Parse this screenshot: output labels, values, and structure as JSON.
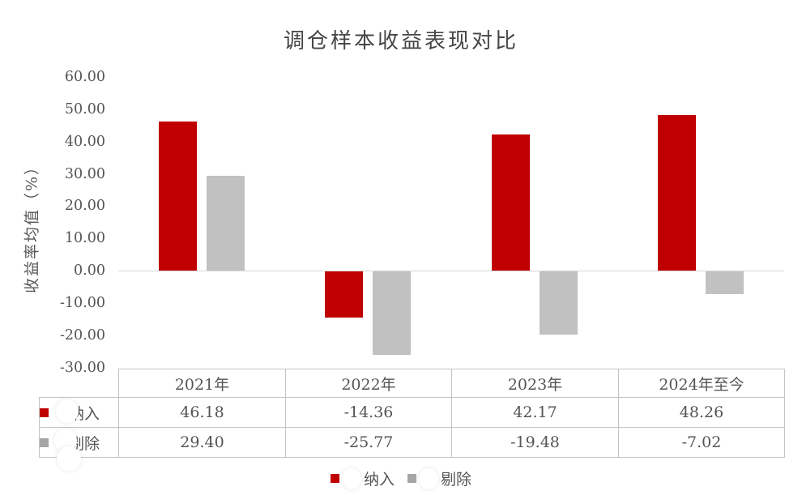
{
  "title": "调仓样本收益表现对比",
  "chart_data": {
    "type": "bar",
    "title": "调仓样本收益表现对比",
    "xlabel": "",
    "ylabel": "收益率均值（%）",
    "ylim": [
      -30,
      60
    ],
    "ytick_step": 10,
    "ytick_format_decimals": 2,
    "grid": false,
    "legend_position": "bottom",
    "data_table_shown": true,
    "categories": [
      "2021年",
      "2022年",
      "2023年",
      "2024年至今"
    ],
    "series": [
      {
        "name": "纳入",
        "color": "#c00000",
        "key_color": "#c00000",
        "values": [
          46.18,
          -14.36,
          42.17,
          48.26
        ]
      },
      {
        "name": "剔除",
        "color": "#c1c1c1",
        "key_color": "#a6a6a6",
        "values": [
          29.4,
          -25.77,
          -19.48,
          -7.02
        ]
      }
    ]
  },
  "colors": {
    "accent_red": "#c00000",
    "series_gray": "#c1c1c1",
    "axis_line": "#d6d6d6",
    "table_border": "#c3c3c3",
    "text": "#555555",
    "title_text": "#454545"
  },
  "legend": {
    "items": [
      {
        "label": "纳入"
      },
      {
        "label": "剔除"
      }
    ]
  }
}
